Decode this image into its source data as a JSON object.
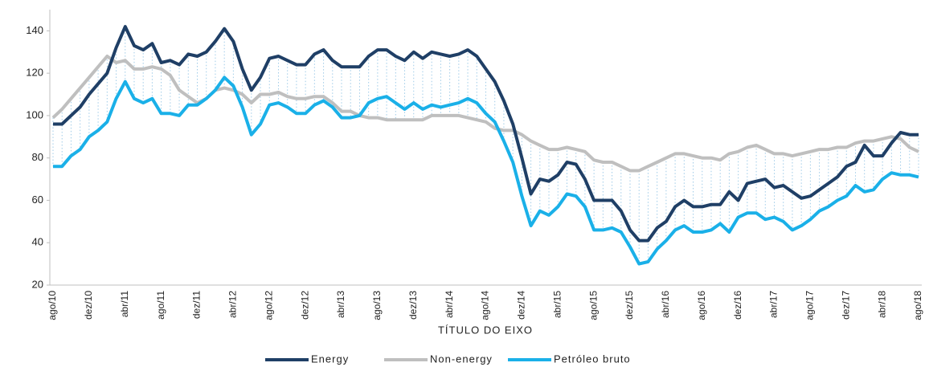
{
  "chart_data": {
    "type": "line",
    "x_label": "TÍTULO DO EIXO",
    "categories": [
      "ago/10",
      null,
      null,
      null,
      "dez/10",
      null,
      null,
      null,
      "abr/11",
      null,
      null,
      null,
      "ago/11",
      null,
      null,
      null,
      "dez/11",
      null,
      null,
      null,
      "abr/12",
      null,
      null,
      null,
      "ago/12",
      null,
      null,
      null,
      "dez/12",
      null,
      null,
      null,
      "abr/13",
      null,
      null,
      null,
      "ago/13",
      null,
      null,
      null,
      "dez/13",
      null,
      null,
      null,
      "abr/14",
      null,
      null,
      null,
      "ago/14",
      null,
      null,
      null,
      "dez/14",
      null,
      null,
      null,
      "abr/15",
      null,
      null,
      null,
      "ago/15",
      null,
      null,
      null,
      "dez/15",
      null,
      null,
      null,
      "abr/16",
      null,
      null,
      null,
      "ago/16",
      null,
      null,
      null,
      "dez/16",
      null,
      null,
      null,
      "abr/17",
      null,
      null,
      null,
      "ago/17",
      null,
      null,
      null,
      "dez/17",
      null,
      null,
      null,
      "abr/18",
      null,
      null,
      null,
      "ago/18"
    ],
    "series": [
      {
        "name": "Energy",
        "color": "#1f3f66",
        "values": [
          96,
          96,
          100,
          104,
          110,
          115,
          120,
          132,
          142,
          133,
          131,
          134,
          125,
          126,
          124,
          129,
          128,
          130,
          135,
          141,
          135,
          122,
          112,
          118,
          127,
          128,
          126,
          124,
          124,
          129,
          131,
          126,
          123,
          123,
          123,
          128,
          131,
          131,
          128,
          126,
          130,
          127,
          130,
          129,
          128,
          129,
          131,
          128,
          122,
          116,
          107,
          96,
          80,
          63,
          70,
          69,
          72,
          78,
          77,
          70,
          60,
          60,
          60,
          55,
          46,
          41,
          41,
          47,
          50,
          57,
          60,
          57,
          57,
          58,
          58,
          64,
          60,
          68,
          69,
          70,
          66,
          67,
          64,
          61,
          62,
          65,
          68,
          71,
          76,
          78,
          86,
          81,
          81,
          87,
          92,
          91,
          91
        ]
      },
      {
        "name": "Non-energy",
        "color": "#bfbfbf",
        "values": [
          99,
          103,
          108,
          113,
          118,
          123,
          128,
          125,
          126,
          122,
          122,
          123,
          122,
          119,
          112,
          109,
          106,
          108,
          112,
          113,
          112,
          110,
          106,
          110,
          110,
          111,
          109,
          108,
          108,
          109,
          109,
          106,
          102,
          102,
          100,
          99,
          99,
          98,
          98,
          98,
          98,
          98,
          100,
          100,
          100,
          100,
          99,
          98,
          97,
          94,
          93,
          93,
          91,
          88,
          86,
          84,
          84,
          85,
          84,
          83,
          79,
          78,
          78,
          76,
          74,
          74,
          76,
          78,
          80,
          82,
          82,
          81,
          80,
          80,
          79,
          82,
          83,
          85,
          86,
          84,
          82,
          82,
          81,
          82,
          83,
          84,
          84,
          85,
          85,
          87,
          88,
          88,
          89,
          90,
          89,
          85,
          83
        ]
      },
      {
        "name": "Petróleo bruto",
        "color": "#1ab0e8",
        "values": [
          76,
          76,
          81,
          84,
          90,
          93,
          97,
          108,
          116,
          108,
          106,
          108,
          101,
          101,
          100,
          105,
          105,
          108,
          112,
          118,
          114,
          104,
          91,
          96,
          105,
          106,
          104,
          101,
          101,
          105,
          107,
          104,
          99,
          99,
          100,
          106,
          108,
          109,
          106,
          103,
          106,
          103,
          105,
          104,
          105,
          106,
          108,
          106,
          101,
          97,
          88,
          78,
          62,
          48,
          55,
          53,
          57,
          63,
          62,
          57,
          46,
          46,
          47,
          45,
          38,
          30,
          31,
          37,
          41,
          46,
          48,
          45,
          45,
          46,
          49,
          45,
          52,
          54,
          54,
          51,
          52,
          50,
          46,
          48,
          51,
          55,
          57,
          60,
          62,
          67,
          64,
          65,
          70,
          73,
          72,
          72,
          71
        ]
      }
    ],
    "ylim": [
      20,
      150
    ],
    "yticks": [
      20,
      40,
      60,
      80,
      100,
      120,
      140
    ],
    "legend": "bottom"
  }
}
